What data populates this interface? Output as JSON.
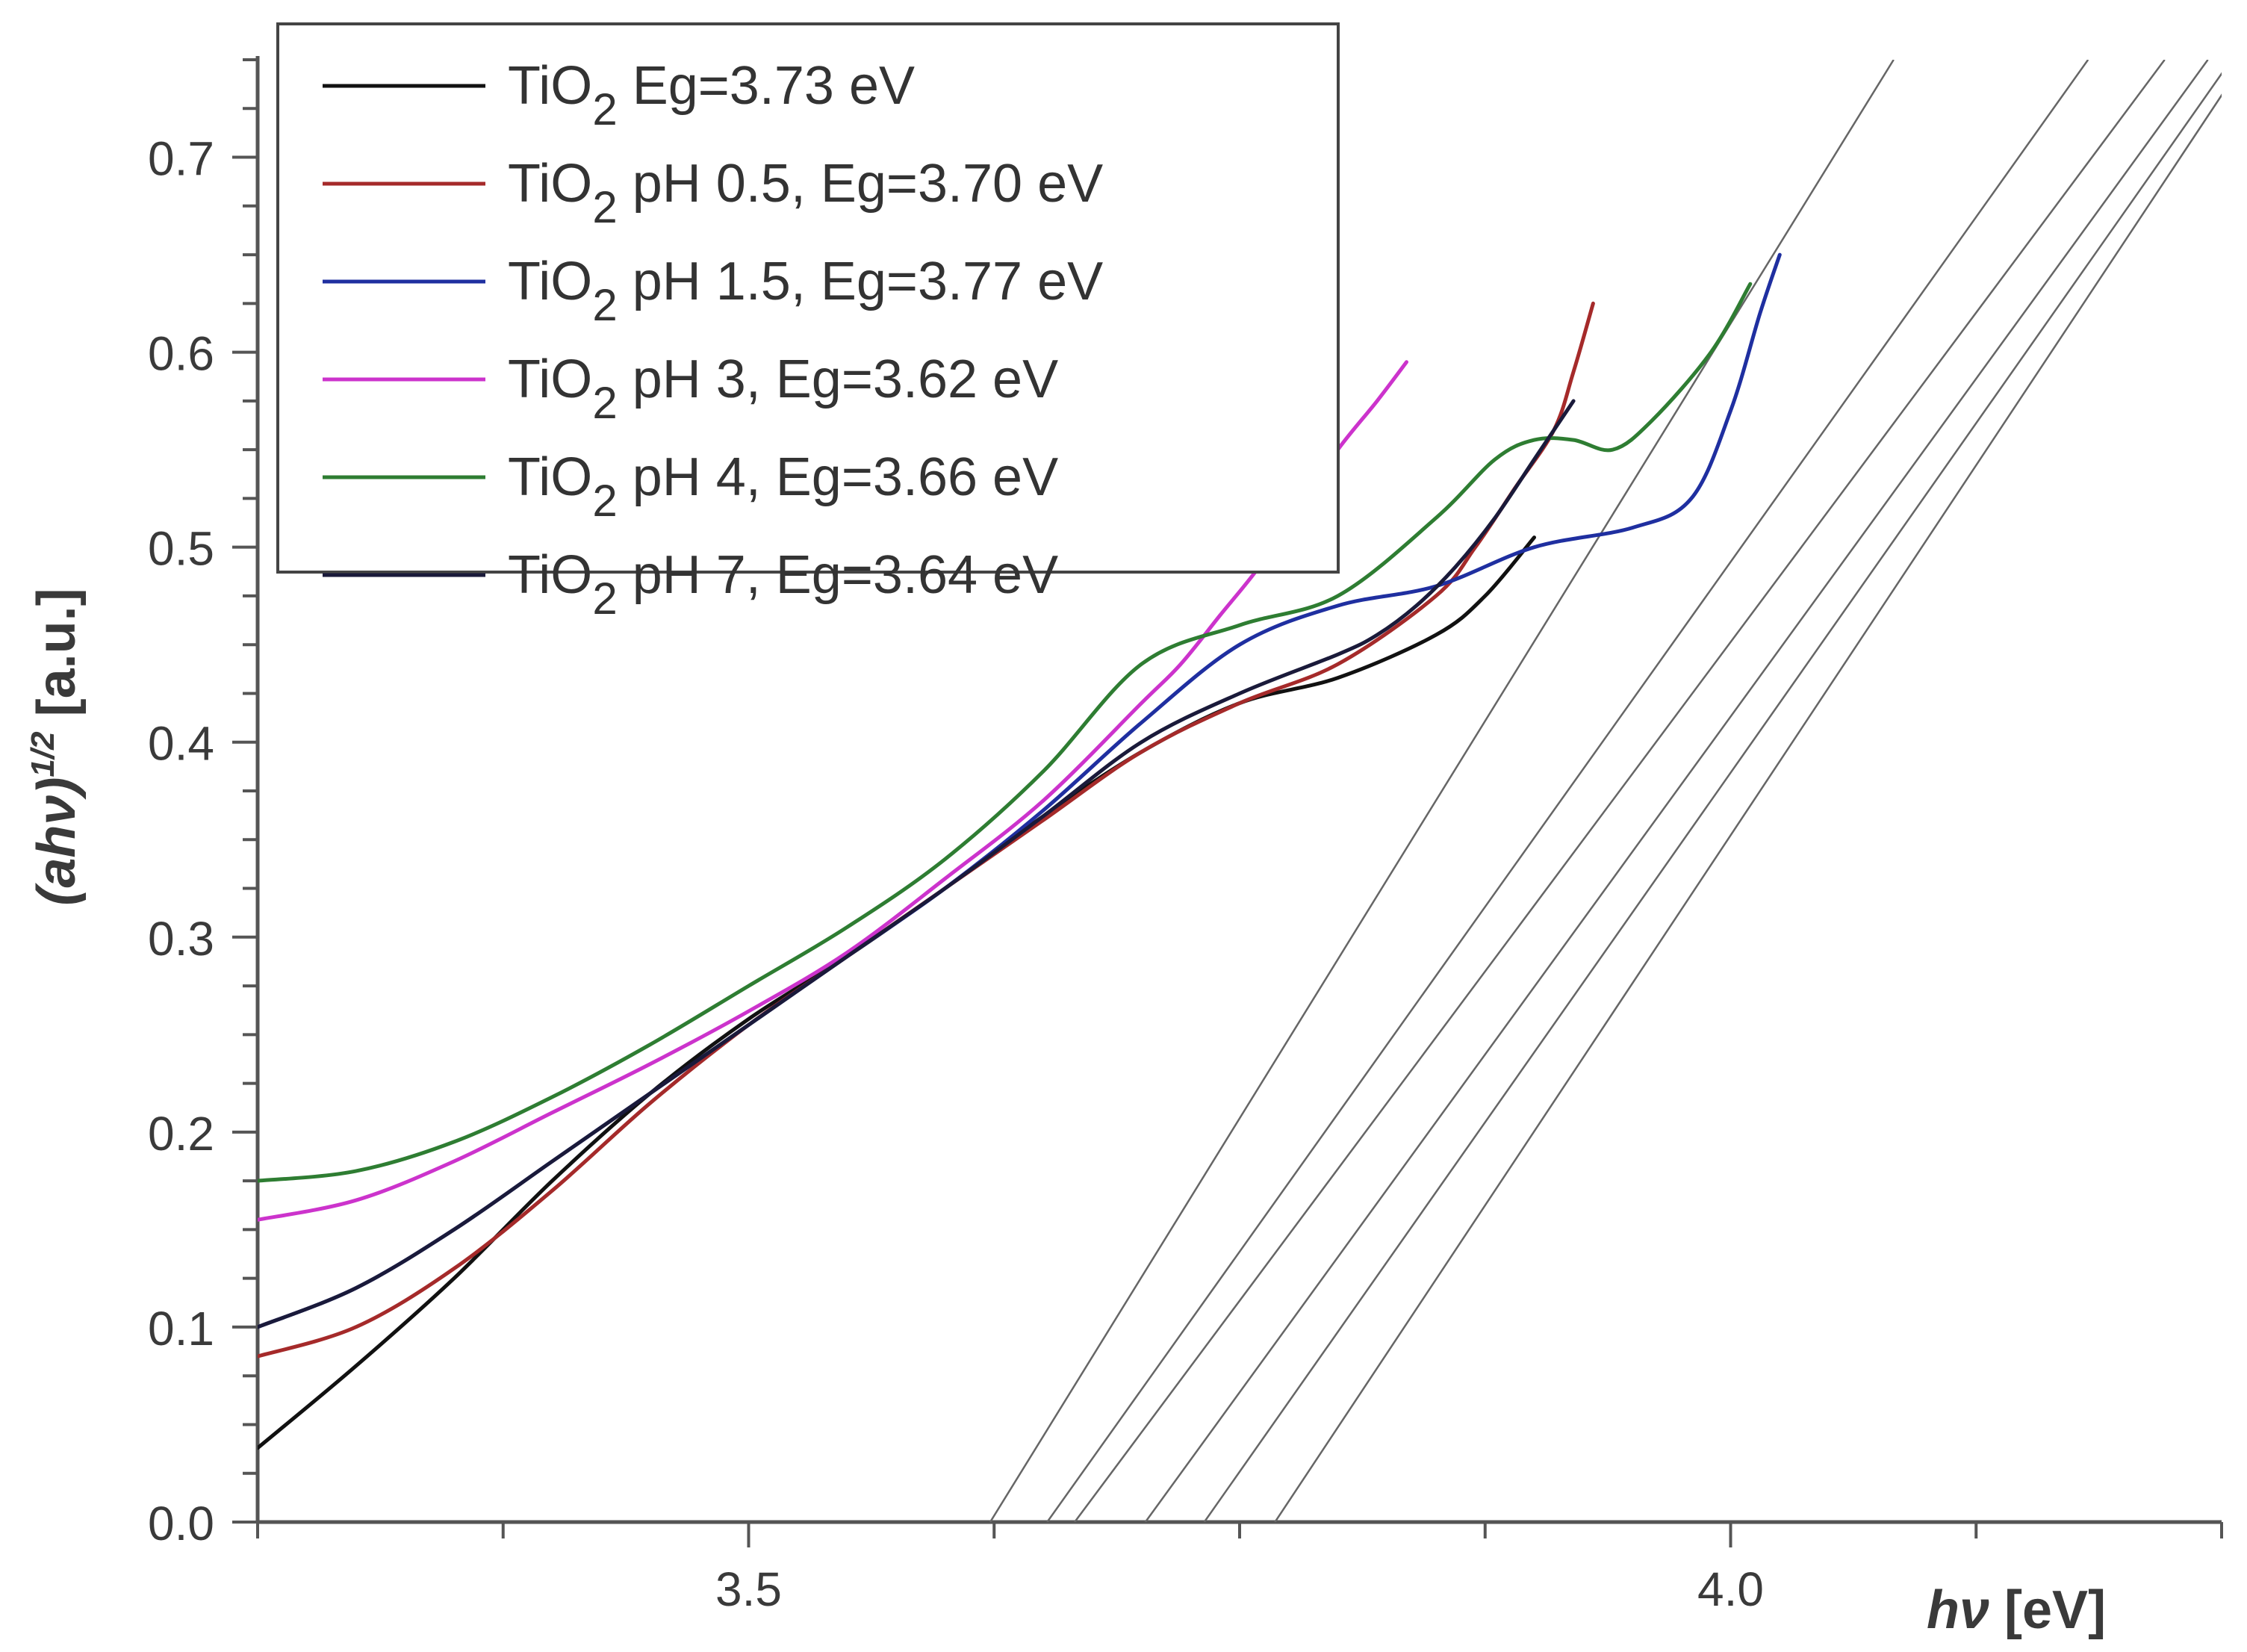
{
  "chart_data": {
    "type": "line",
    "title": "",
    "xlabel": "hν [eV]",
    "xlabel_symbol": "hν",
    "xlabel_unit": " [eV]",
    "ylabel": "(ahν)^1/2 [a.u.]",
    "ylabel_main": "(ahν)",
    "ylabel_sup": "1/2",
    "ylabel_unit": " [a.u.]",
    "xlim": [
      3.25,
      4.25
    ],
    "ylim": [
      0.0,
      0.75
    ],
    "x_ticks": [
      3.5,
      4.0
    ],
    "x_tick_labels": [
      "3.5",
      "4.0"
    ],
    "y_ticks": [
      0.0,
      0.1,
      0.2,
      0.3,
      0.4,
      0.5,
      0.6,
      0.7
    ],
    "y_tick_labels": [
      "0.0",
      "0.1",
      "0.2",
      "0.3",
      "0.4",
      "0.5",
      "0.6",
      "0.7"
    ],
    "legend_position": "top-left",
    "series": [
      {
        "name": "TiO2 Eg=3.73 eV",
        "label_main": "TiO",
        "label_sub": "2",
        "label_rest": "  Eg=3.73 eV",
        "color": "#111111",
        "x": [
          3.25,
          3.3,
          3.35,
          3.4,
          3.45,
          3.5,
          3.55,
          3.6,
          3.65,
          3.7,
          3.75,
          3.8,
          3.85,
          3.875,
          3.9
        ],
        "y": [
          0.038,
          0.08,
          0.125,
          0.175,
          0.22,
          0.258,
          0.29,
          0.325,
          0.362,
          0.395,
          0.42,
          0.433,
          0.455,
          0.475,
          0.505
        ]
      },
      {
        "name": "TiO2 pH 0.5, Eg=3.70 eV",
        "label_main": "TiO",
        "label_sub": "2",
        "label_rest": " pH 0.5, Eg=3.70 eV",
        "color": "#a52a2a",
        "x": [
          3.25,
          3.3,
          3.35,
          3.4,
          3.45,
          3.5,
          3.55,
          3.6,
          3.65,
          3.7,
          3.75,
          3.8,
          3.85,
          3.87,
          3.89,
          3.91,
          3.92,
          3.93
        ],
        "y": [
          0.085,
          0.1,
          0.13,
          0.17,
          0.215,
          0.255,
          0.29,
          0.325,
          0.36,
          0.395,
          0.42,
          0.44,
          0.475,
          0.5,
          0.53,
          0.56,
          0.59,
          0.625
        ]
      },
      {
        "name": "TiO2 pH 1.5, Eg=3.77 eV",
        "label_main": "TiO",
        "label_sub": "2",
        "label_rest": " pH 1.5, Eg=3.77 eV",
        "color": "#1f2fa0",
        "x": [
          3.25,
          3.3,
          3.35,
          3.4,
          3.45,
          3.5,
          3.55,
          3.6,
          3.65,
          3.7,
          3.75,
          3.8,
          3.85,
          3.9,
          3.95,
          3.98,
          4.0,
          4.015,
          4.025
        ],
        "y": [
          0.1,
          0.12,
          0.15,
          0.185,
          0.22,
          0.255,
          0.29,
          0.325,
          0.365,
          0.41,
          0.45,
          0.47,
          0.48,
          0.5,
          0.51,
          0.525,
          0.57,
          0.62,
          0.65
        ]
      },
      {
        "name": "TiO2 pH 3, Eg=3.62 eV",
        "label_main": "TiO",
        "label_sub": "2",
        "label_rest": " pH 3, Eg=3.62 eV",
        "color": "#cc33cc",
        "x": [
          3.25,
          3.3,
          3.35,
          3.4,
          3.45,
          3.5,
          3.55,
          3.6,
          3.65,
          3.7,
          3.72,
          3.74,
          3.76,
          3.78,
          3.8,
          3.82,
          3.835
        ],
        "y": [
          0.155,
          0.165,
          0.185,
          0.21,
          0.235,
          0.262,
          0.292,
          0.33,
          0.37,
          0.42,
          0.44,
          0.465,
          0.49,
          0.52,
          0.55,
          0.575,
          0.595
        ]
      },
      {
        "name": "TiO2 pH 4, Eg=3.66 eV",
        "label_main": "TiO",
        "label_sub": "2",
        "label_rest": " pH 4, Eg=3.66 eV",
        "color": "#2e7d32",
        "x": [
          3.25,
          3.3,
          3.35,
          3.4,
          3.45,
          3.5,
          3.55,
          3.6,
          3.65,
          3.7,
          3.75,
          3.8,
          3.85,
          3.88,
          3.9,
          3.92,
          3.94,
          3.96,
          3.99,
          4.01
        ],
        "y": [
          0.175,
          0.18,
          0.195,
          0.218,
          0.245,
          0.275,
          0.305,
          0.34,
          0.385,
          0.44,
          0.46,
          0.475,
          0.515,
          0.545,
          0.555,
          0.555,
          0.55,
          0.565,
          0.6,
          0.635
        ]
      },
      {
        "name": "TiO2 pH 7, Eg=3.64 eV",
        "label_main": "TiO",
        "label_sub": "2",
        "label_rest": " pH 7, Eg=3.64 eV",
        "color": "#1a1a3a",
        "x": [
          3.25,
          3.3,
          3.35,
          3.4,
          3.45,
          3.5,
          3.55,
          3.6,
          3.65,
          3.7,
          3.75,
          3.8,
          3.82,
          3.84,
          3.86,
          3.88,
          3.9,
          3.92
        ],
        "y": [
          0.1,
          0.12,
          0.15,
          0.185,
          0.22,
          0.255,
          0.29,
          0.325,
          0.362,
          0.4,
          0.425,
          0.445,
          0.455,
          0.47,
          0.49,
          0.515,
          0.545,
          0.575
        ]
      }
    ],
    "tangent_lines": [
      {
        "name": "fit line",
        "x": [
          3.623,
          4.083
        ],
        "y": [
          0.0,
          0.75
        ]
      },
      {
        "name": "fit line",
        "x": [
          3.652,
          4.182
        ],
        "y": [
          0.0,
          0.75
        ]
      },
      {
        "name": "fit line",
        "x": [
          3.666,
          4.221
        ],
        "y": [
          0.0,
          0.75
        ]
      },
      {
        "name": "fit line",
        "x": [
          3.702,
          4.243
        ],
        "y": [
          0.0,
          0.75
        ]
      },
      {
        "name": "fit line",
        "x": [
          3.732,
          4.255
        ],
        "y": [
          0.0,
          0.75
        ]
      },
      {
        "name": "fit line",
        "x": [
          3.768,
          4.262
        ],
        "y": [
          0.0,
          0.75
        ]
      }
    ],
    "grid": false
  }
}
